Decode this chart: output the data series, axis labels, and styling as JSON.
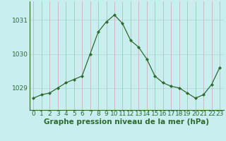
{
  "x": [
    0,
    1,
    2,
    3,
    4,
    5,
    6,
    7,
    8,
    9,
    10,
    11,
    12,
    13,
    14,
    15,
    16,
    17,
    18,
    19,
    20,
    21,
    22,
    23
  ],
  "y": [
    1028.7,
    1028.8,
    1028.85,
    1029.0,
    1029.15,
    1029.25,
    1029.35,
    1030.0,
    1030.65,
    1030.95,
    1031.15,
    1030.9,
    1030.4,
    1030.2,
    1029.85,
    1029.35,
    1029.15,
    1029.05,
    1029.0,
    1028.85,
    1028.7,
    1028.8,
    1029.1,
    1029.6
  ],
  "line_color": "#2d6a2d",
  "marker": "D",
  "marker_size": 2.0,
  "bg_color": "#c8eef0",
  "grid_color": "#aadddd",
  "text_color": "#2d6a2d",
  "xlabel": "Graphe pression niveau de la mer (hPa)",
  "yticks": [
    1029,
    1030,
    1031
  ],
  "xticks": [
    0,
    1,
    2,
    3,
    4,
    5,
    6,
    7,
    8,
    9,
    10,
    11,
    12,
    13,
    14,
    15,
    16,
    17,
    18,
    19,
    20,
    21,
    22,
    23
  ],
  "ylim": [
    1028.35,
    1031.55
  ],
  "xlim": [
    -0.5,
    23.5
  ],
  "tick_fontsize": 6.5,
  "xlabel_fontsize": 7.5
}
